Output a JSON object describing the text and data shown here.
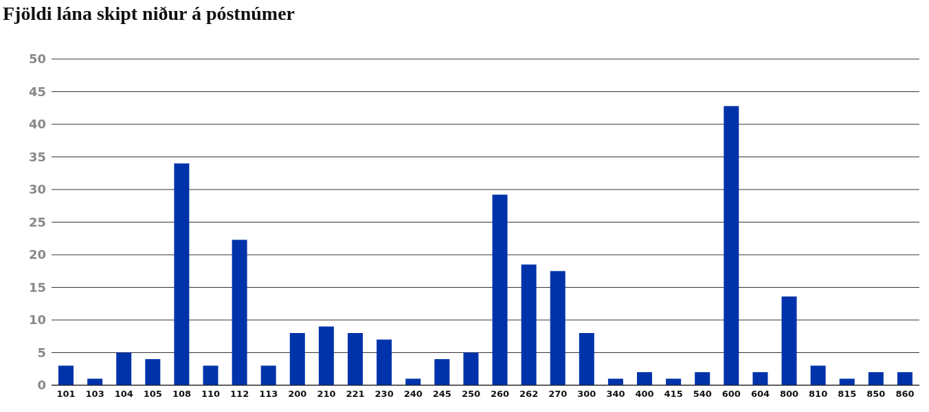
{
  "chart_data": {
    "type": "bar",
    "title": "Fjöldi lána skipt niður á póstnúmer",
    "categories": [
      "101",
      "103",
      "104",
      "105",
      "108",
      "110",
      "112",
      "113",
      "200",
      "210",
      "221",
      "230",
      "240",
      "245",
      "250",
      "260",
      "262",
      "270",
      "300",
      "340",
      "400",
      "415",
      "540",
      "600",
      "604",
      "800",
      "810",
      "815",
      "850",
      "860"
    ],
    "values": [
      3,
      1,
      5,
      4,
      34,
      3,
      22.3,
      3,
      8,
      9,
      8,
      7,
      1,
      4,
      5,
      29.2,
      18.5,
      17.5,
      8,
      1,
      2,
      1,
      2,
      42.8,
      2,
      13.6,
      3,
      1,
      2,
      2
    ],
    "color": "#0033aa",
    "ylim": [
      0,
      50
    ],
    "yticks": [
      0,
      5,
      10,
      15,
      20,
      25,
      30,
      35,
      40,
      45,
      50
    ],
    "grid": "y"
  }
}
